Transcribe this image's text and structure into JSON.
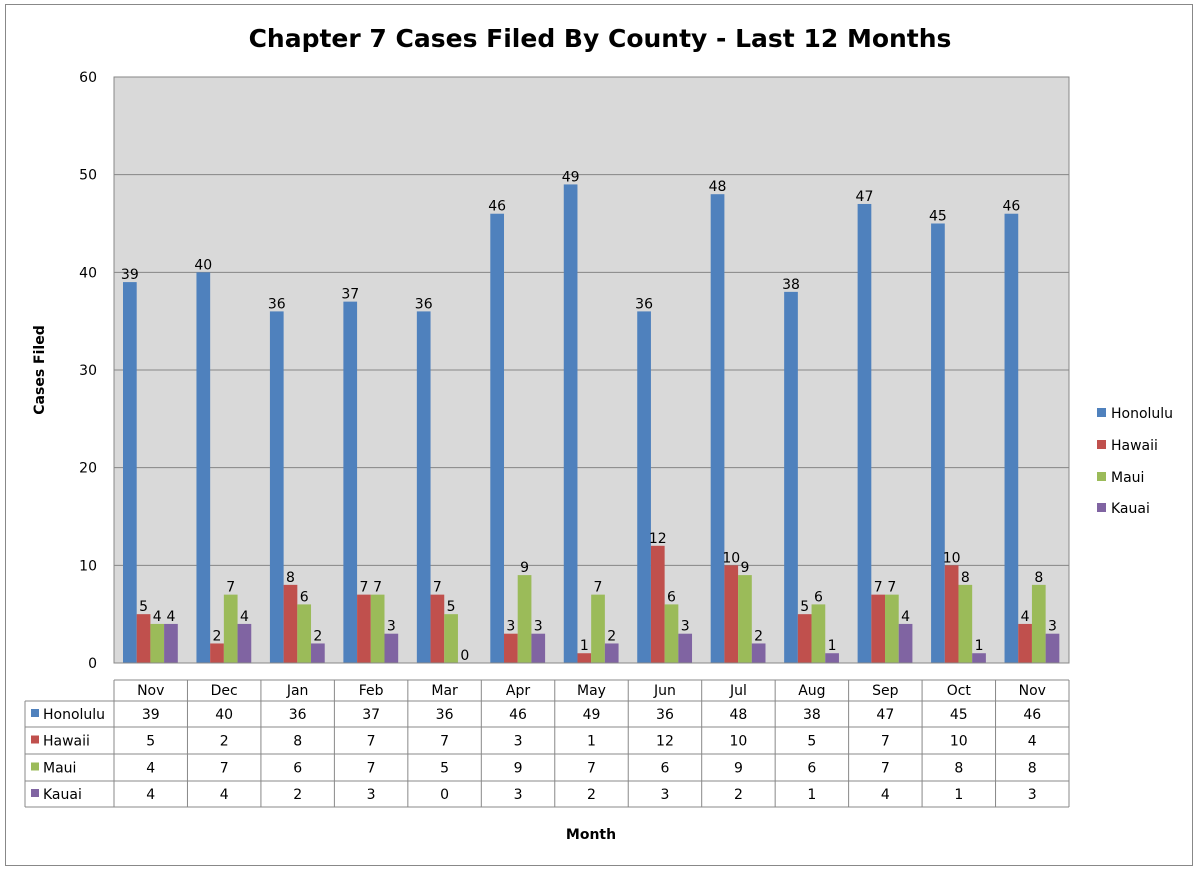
{
  "chart_data": {
    "type": "bar",
    "title": "Chapter 7 Cases Filed By County - Last 12 Months",
    "xlabel": "Month",
    "ylabel": "Cases Filed",
    "ylim": [
      0,
      60
    ],
    "yticks": [
      "0",
      "10",
      "20",
      "30",
      "40",
      "50",
      "60"
    ],
    "grid": true,
    "legend_position": "right",
    "data_table": true,
    "categories": [
      "Nov",
      "Dec",
      "Jan",
      "Feb",
      "Mar",
      "Apr",
      "May",
      "Jun",
      "Jul",
      "Aug",
      "Sep",
      "Oct",
      "Nov"
    ],
    "series": [
      {
        "name": "Honolulu",
        "color": "#4F81BD",
        "values": [
          39,
          40,
          36,
          37,
          36,
          46,
          49,
          36,
          48,
          38,
          47,
          45,
          46
        ]
      },
      {
        "name": "Hawaii",
        "color": "#C0504D",
        "values": [
          5,
          2,
          8,
          7,
          7,
          3,
          1,
          12,
          10,
          5,
          7,
          10,
          4
        ]
      },
      {
        "name": "Maui",
        "color": "#9BBB59",
        "values": [
          4,
          7,
          6,
          7,
          5,
          9,
          7,
          6,
          9,
          6,
          7,
          8,
          8
        ]
      },
      {
        "name": "Kauai",
        "color": "#8064A2",
        "values": [
          4,
          4,
          2,
          3,
          0,
          3,
          2,
          3,
          2,
          1,
          4,
          1,
          3
        ]
      }
    ]
  }
}
